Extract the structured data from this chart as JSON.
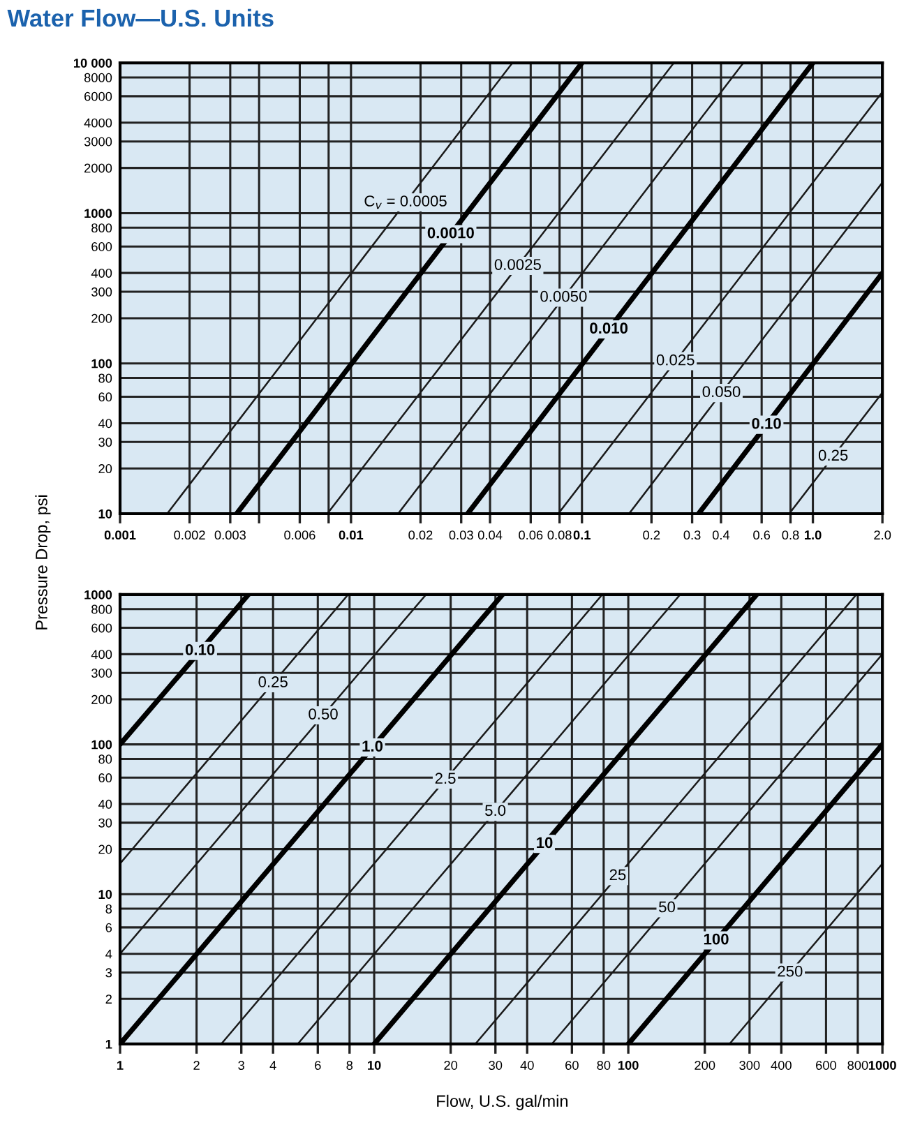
{
  "chart_data": [
    {
      "type": "line",
      "title": "Water Flow—U.S. Units",
      "ylabel": "Pressure Drop, psi",
      "log": "xy",
      "grid": true,
      "legend": false,
      "marker": "none",
      "line_style": "solid",
      "xlim": [
        0.001,
        2
      ],
      "ylim": [
        10,
        10000
      ],
      "xticks": [
        0.001,
        0.002,
        0.003,
        {
          "value": 0.004,
          "label": null
        },
        0.006,
        {
          "value": 0.008,
          "label": null
        },
        0.01,
        0.02,
        0.03,
        0.04,
        0.06,
        0.08,
        0.1,
        0.2,
        0.3,
        0.4,
        0.6,
        0.8,
        {
          "value": 1,
          "label": "1.0"
        },
        {
          "value": 2,
          "label": "2.0"
        }
      ],
      "yticks": [
        10,
        20,
        30,
        40,
        60,
        80,
        100,
        200,
        300,
        400,
        600,
        800,
        1000,
        2000,
        3000,
        4000,
        6000,
        8000,
        {
          "value": 10000,
          "label": "10 000"
        }
      ],
      "series": [
        {
          "name": "C$_{v}$ = 0.0005",
          "color": "#1a1a1a",
          "x": [
            0.0016,
            0.05
          ],
          "values": [
            10,
            10000
          ]
        },
        {
          "name": "0.0010",
          "color": "#000000",
          "x": [
            0.0032,
            0.1
          ],
          "values": [
            10,
            10000
          ]
        },
        {
          "name": "0.0025",
          "color": "#1a1a1a",
          "x": [
            0.0079,
            0.25
          ],
          "values": [
            10,
            10000
          ]
        },
        {
          "name": "0.0050",
          "color": "#1a1a1a",
          "x": [
            0.016,
            0.5
          ],
          "values": [
            10,
            10000
          ]
        },
        {
          "name": "0.010",
          "color": "#000000",
          "x": [
            0.032,
            1.0
          ],
          "values": [
            10,
            10000
          ]
        },
        {
          "name": "0.025",
          "color": "#1a1a1a",
          "x": [
            0.079,
            2
          ],
          "values": [
            10,
            6400
          ]
        },
        {
          "name": "0.050",
          "color": "#1a1a1a",
          "x": [
            0.16,
            2
          ],
          "values": [
            10,
            1600
          ]
        },
        {
          "name": "0.10",
          "color": "#000000",
          "x": [
            0.32,
            2
          ],
          "values": [
            10,
            400
          ]
        },
        {
          "name": "0.25",
          "color": "#1a1a1a",
          "x": [
            0.79,
            2
          ],
          "values": [
            10,
            64
          ]
        }
      ]
    },
    {
      "type": "line",
      "xlabel": "Flow, U.S. gal/min",
      "log": "xy",
      "grid": true,
      "legend": false,
      "marker": "none",
      "line_style": "solid",
      "xlim": [
        1,
        1000
      ],
      "ylim": [
        1,
        1000
      ],
      "xticks": [
        1,
        2,
        3,
        4,
        6,
        8,
        10,
        20,
        30,
        40,
        60,
        80,
        100,
        200,
        300,
        400,
        600,
        800,
        1000
      ],
      "yticks": [
        1,
        2,
        3,
        4,
        6,
        8,
        10,
        20,
        30,
        40,
        60,
        80,
        100,
        200,
        300,
        400,
        600,
        800,
        1000
      ],
      "series": [
        {
          "name": "0.10",
          "color": "#000000",
          "x": [
            1,
            3.2
          ],
          "values": [
            100,
            1000
          ]
        },
        {
          "name": "0.25",
          "color": "#1a1a1a",
          "x": [
            1,
            7.9
          ],
          "values": [
            16,
            1000
          ]
        },
        {
          "name": "0.50",
          "color": "#1a1a1a",
          "x": [
            1,
            16
          ],
          "values": [
            4,
            1000
          ]
        },
        {
          "name": "1.0",
          "color": "#000000",
          "x": [
            1,
            32
          ],
          "values": [
            1,
            1000
          ]
        },
        {
          "name": "2.5",
          "color": "#1a1a1a",
          "x": [
            2.5,
            79
          ],
          "values": [
            1,
            1000
          ]
        },
        {
          "name": "5.0",
          "color": "#1a1a1a",
          "x": [
            5,
            160
          ],
          "values": [
            1,
            1000
          ]
        },
        {
          "name": "10",
          "color": "#000000",
          "x": [
            10,
            320
          ],
          "values": [
            1,
            1000
          ]
        },
        {
          "name": "25",
          "color": "#1a1a1a",
          "x": [
            25,
            790
          ],
          "values": [
            1,
            1000
          ]
        },
        {
          "name": "50",
          "color": "#1a1a1a",
          "x": [
            50,
            1000
          ],
          "values": [
            1,
            400
          ]
        },
        {
          "name": "100",
          "color": "#000000",
          "x": [
            100,
            1000
          ],
          "values": [
            1,
            100
          ]
        },
        {
          "name": "250",
          "color": "#1a1a1a",
          "x": [
            250,
            1000
          ],
          "values": [
            1,
            16
          ]
        }
      ]
    }
  ]
}
